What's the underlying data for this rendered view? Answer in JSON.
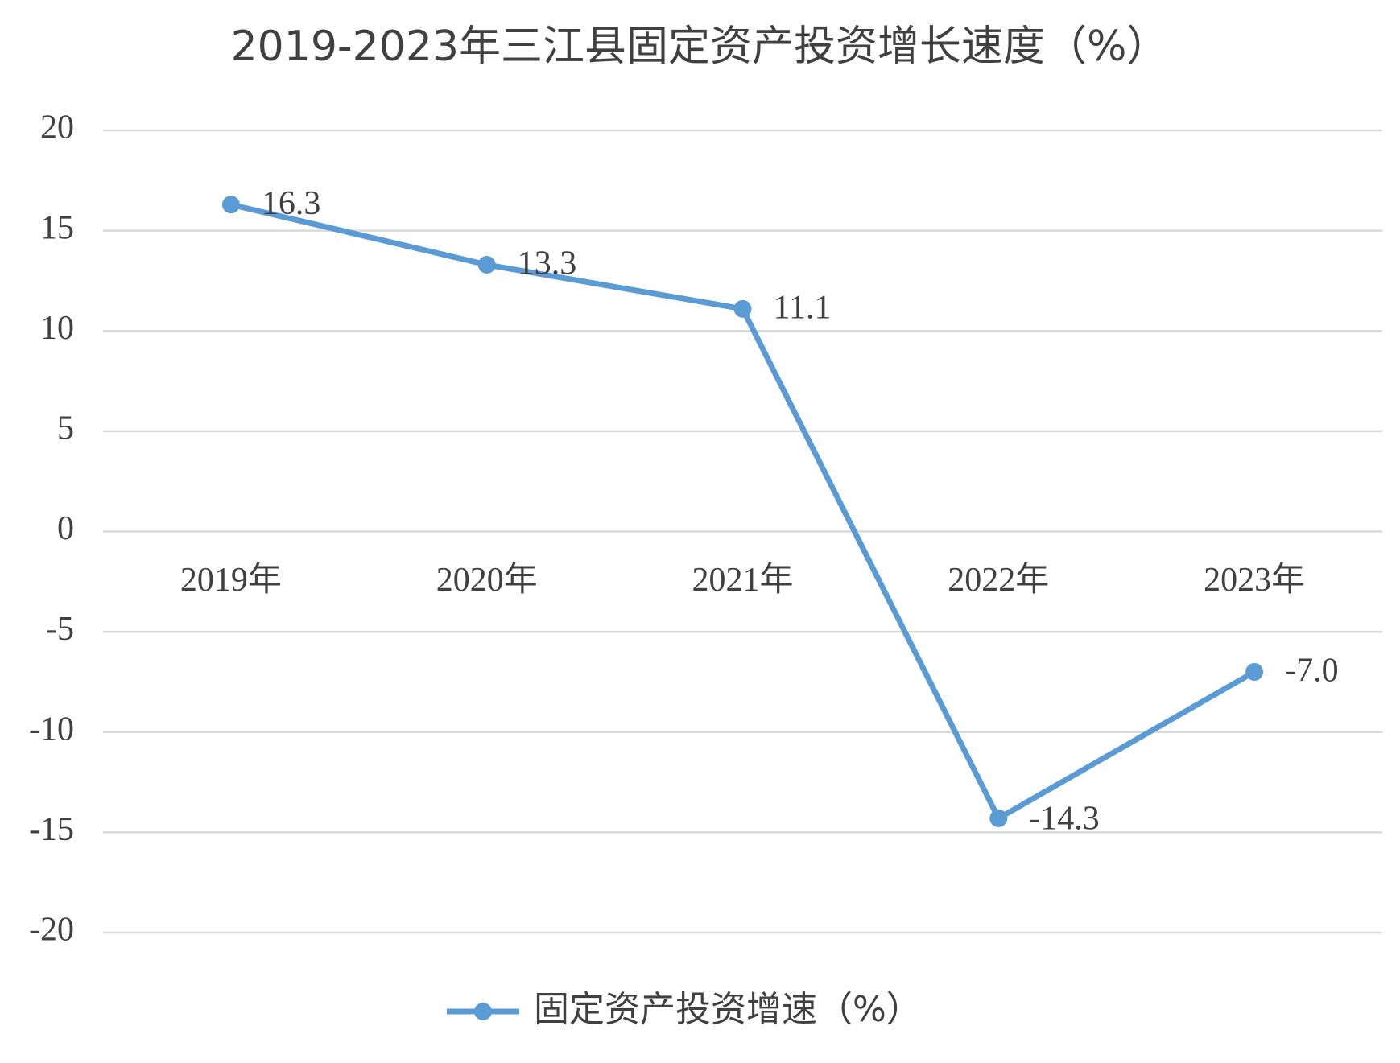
{
  "chart_data": {
    "type": "line",
    "title": "2019-2023年三江县固定资产投资增长速度（%）",
    "categories": [
      "2019年",
      "2020年",
      "2021年",
      "2022年",
      "2023年"
    ],
    "series": [
      {
        "name": "固定资产投资增速（%）",
        "color": "#5b9bd5",
        "values": [
          16.3,
          13.3,
          11.1,
          -14.3,
          -7.0
        ],
        "value_labels": [
          "16.3",
          "13.3",
          "11.1",
          "-14.3",
          "-7.0"
        ]
      }
    ],
    "ylim": [
      -20,
      20
    ],
    "yticks": [
      -20,
      -15,
      -10,
      -5,
      0,
      5,
      10,
      15,
      20
    ],
    "grid": true,
    "legend": "bottom"
  }
}
